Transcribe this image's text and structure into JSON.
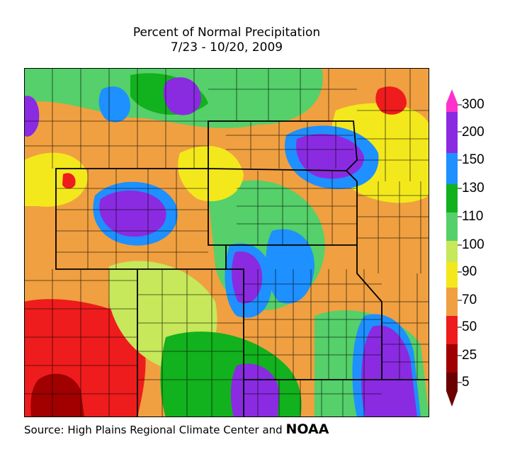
{
  "title": "Percent of Normal Precipitation",
  "subtitle": "7/23 - 10/20, 2009",
  "legend": {
    "labels": [
      "300",
      "200",
      "150",
      "130",
      "110",
      "100",
      "90",
      "70",
      "50",
      "25",
      "5"
    ],
    "colors": {
      "c300": "#ff33cc",
      "c200": "#8a2be2",
      "c150": "#1e90ff",
      "c130": "#12b11e",
      "c110": "#55d06a",
      "c100": "#c6e85a",
      "c90": "#f3e81c",
      "c70": "#f0a040",
      "c50": "#f07418",
      "c25": "#ee1c1c",
      "c5": "#a00000"
    }
  },
  "source": {
    "text": "Source: High Plains Regional Climate Center and",
    "agency": "NOAA"
  }
}
